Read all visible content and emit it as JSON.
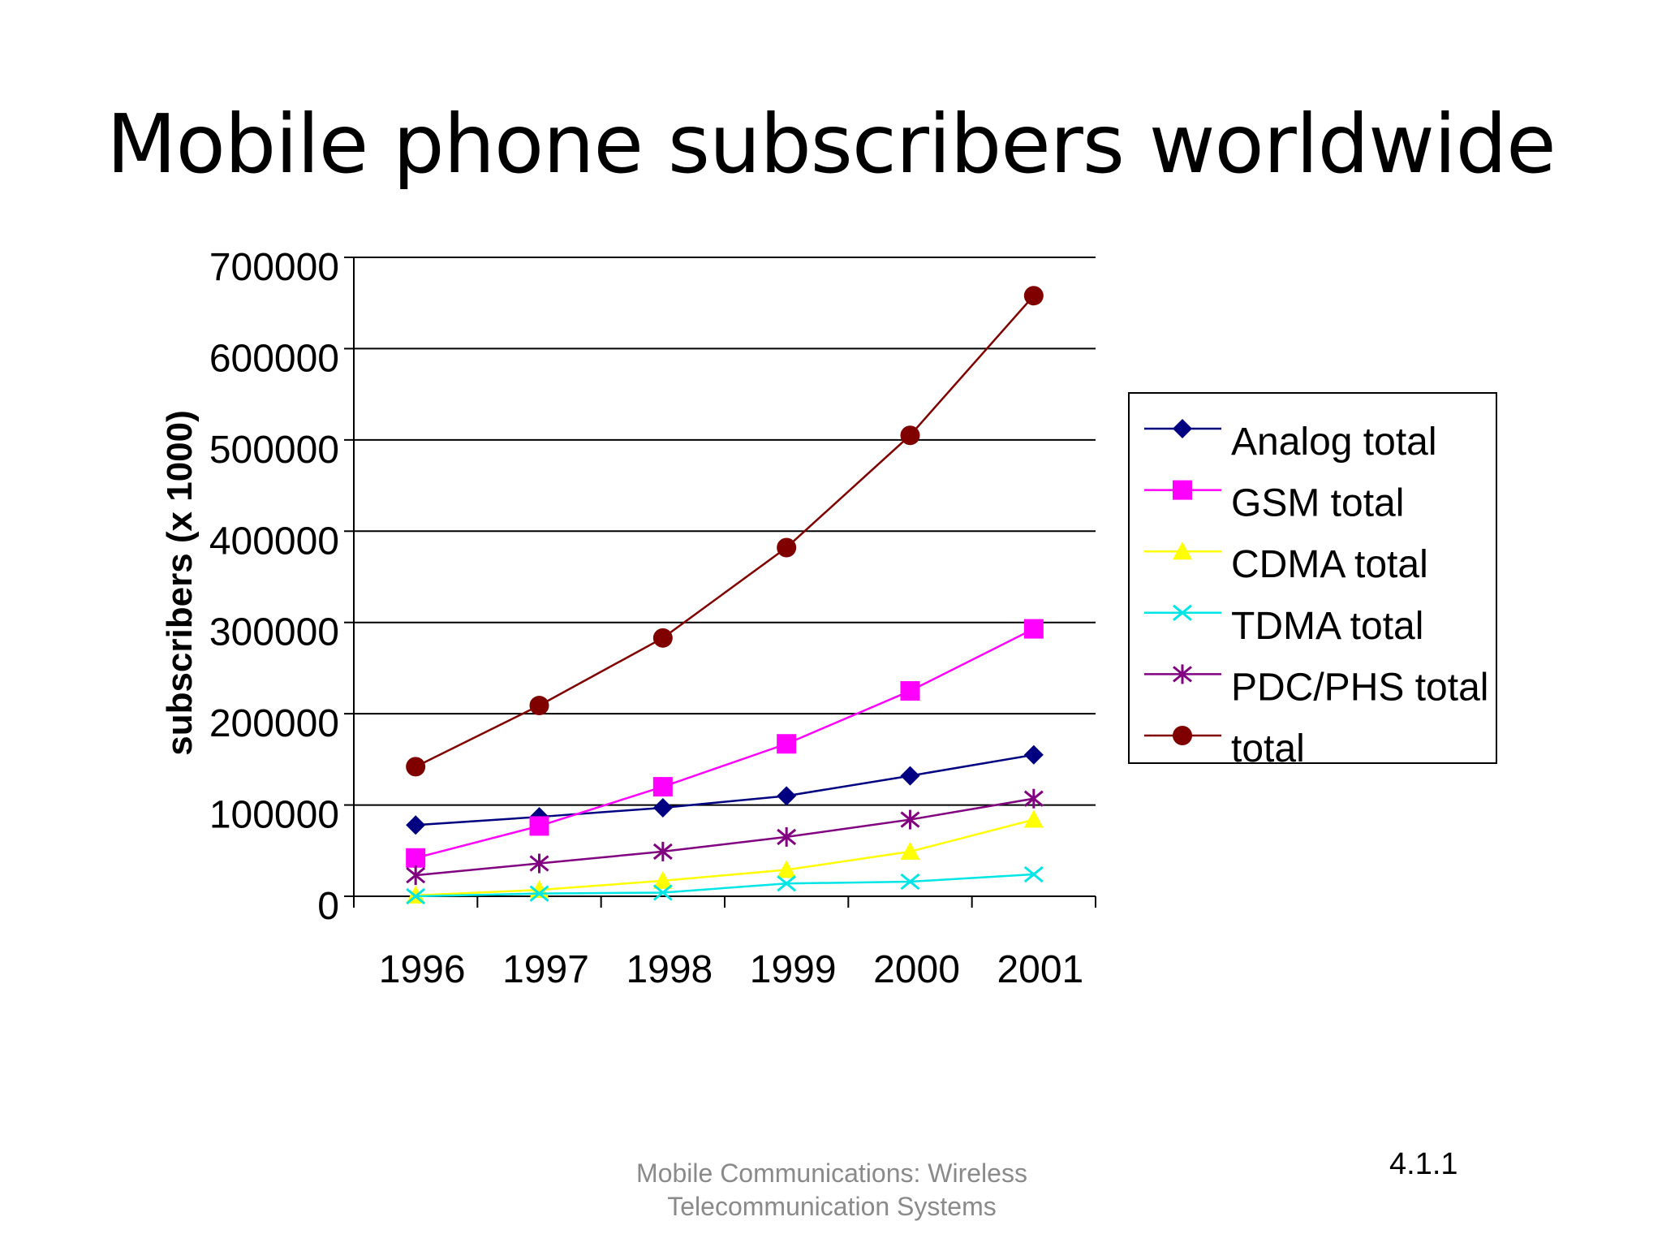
{
  "slide": {
    "title": "Mobile phone subscribers worldwide",
    "footer_line1": "Mobile Communications: Wireless",
    "footer_line2": "Telecommunication Systems",
    "page_number": "4.1.1"
  },
  "chart_data": {
    "type": "line",
    "title": "",
    "xlabel": "",
    "ylabel": "subscribers (x 1000)",
    "ylim": [
      0,
      700000
    ],
    "yticks": [
      0,
      100000,
      200000,
      300000,
      400000,
      500000,
      600000,
      700000
    ],
    "grid": "horizontal",
    "legend_position": "right",
    "categories": [
      "1996",
      "1997",
      "1998",
      "1999",
      "2000",
      "2001"
    ],
    "series": [
      {
        "name": "Analog total",
        "color": "#000080",
        "marker": "diamond",
        "values": [
          78000,
          87000,
          97000,
          110000,
          132000,
          155000
        ]
      },
      {
        "name": "GSM total",
        "color": "#ff00ff",
        "marker": "square",
        "values": [
          42000,
          77000,
          120000,
          167000,
          225000,
          293000
        ]
      },
      {
        "name": "CDMA total",
        "color": "#ffff00",
        "marker": "triangle",
        "values": [
          1000,
          7000,
          17000,
          29000,
          49000,
          84000
        ]
      },
      {
        "name": "TDMA total",
        "color": "#00e5e5",
        "marker": "x",
        "values": [
          0,
          3000,
          4000,
          14000,
          16000,
          24000
        ]
      },
      {
        "name": "PDC/PHS total",
        "color": "#800080",
        "marker": "asterisk",
        "values": [
          23000,
          36000,
          49000,
          65000,
          84000,
          107000
        ]
      },
      {
        "name": "total",
        "color": "#800000",
        "marker": "circle",
        "values": [
          142000,
          209000,
          283000,
          382000,
          505000,
          658000
        ]
      }
    ]
  }
}
